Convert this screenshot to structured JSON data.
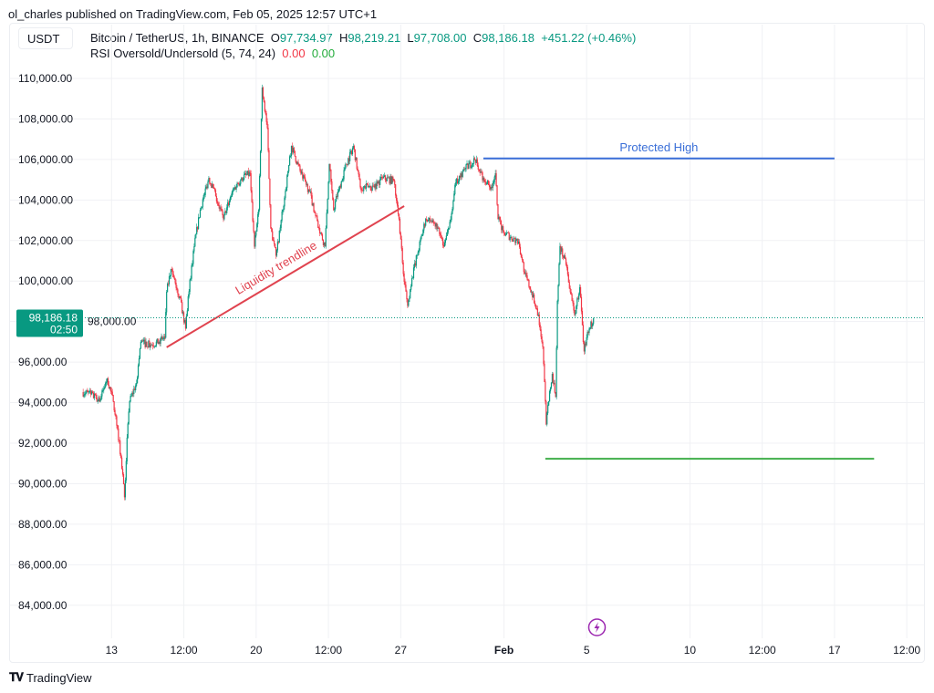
{
  "header": {
    "published": "ol_charles published on TradingView.com, Feb 05, 2025 12:57 UTC+1",
    "currency": "USDT",
    "symbol": "Bitcoin / TetherUS, 1h, BINANCE",
    "o_label": "O",
    "o": "97,734.97",
    "h_label": "H",
    "h": "98,219.21",
    "l_label": "L",
    "l": "97,708.00",
    "c_label": "C",
    "c": "98,186.18",
    "change": "+451.22 (+0.46%)",
    "indicator": "RSI Oversold/Undersold (5, 74, 24)",
    "ind_v1": "0.00",
    "ind_v2": "0.00"
  },
  "price_label": {
    "price": "98,186.18",
    "countdown": "02:50"
  },
  "footer": {
    "brand": "TradingView",
    "logo_text": "17"
  },
  "events_icon": "lightning-icon",
  "colors": {
    "up": "#089981",
    "down": "#f23645",
    "trendline": "#e0434f",
    "protected_high": "#3a6fd8",
    "low_line": "#3fae49",
    "event": "#9c27b0"
  },
  "chart_data": {
    "type": "candlestick",
    "interval": "1h",
    "xlim": [
      "2025-01-08T01:00",
      "2025-02-21T09:00"
    ],
    "ylim": [
      82370,
      112520
    ],
    "grid": true,
    "y_ticks": [
      84000,
      86000,
      88000,
      90000,
      92000,
      94000,
      96000,
      98000,
      100000,
      102000,
      104000,
      106000,
      108000,
      110000
    ],
    "y_tick_labels": [
      "84,000.00",
      "86,000.00",
      "88,000.00",
      "90,000.00",
      "92,000.00",
      "94,000.00",
      "96,000.00",
      "98,000.00",
      "100,000.00",
      "102,000.00",
      "104,000.00",
      "106,000.00",
      "108,000.00",
      "110,000.00"
    ],
    "x_ticks": [
      {
        "t": "2025-01-13T00:00",
        "label": "13"
      },
      {
        "t": "2025-01-16T12:00",
        "label": "12:00"
      },
      {
        "t": "2025-01-20T00:00",
        "label": "20"
      },
      {
        "t": "2025-01-23T12:00",
        "label": "12:00"
      },
      {
        "t": "2025-01-27T00:00",
        "label": "27"
      },
      {
        "t": "2025-02-01T00:00",
        "label": "Feb",
        "bold": true
      },
      {
        "t": "2025-02-05T00:00",
        "label": "5"
      },
      {
        "t": "2025-02-10T00:00",
        "label": "10"
      },
      {
        "t": "2025-02-13T12:00",
        "label": "12:00"
      },
      {
        "t": "2025-02-17T00:00",
        "label": "17"
      },
      {
        "t": "2025-02-20T12:00",
        "label": "12:00"
      }
    ],
    "last_price": 98186.18,
    "close_path": [
      [
        "2025-01-11T14:00",
        94520
      ],
      [
        "2025-01-12T00:00",
        94430
      ],
      [
        "2025-01-12T10:00",
        94070
      ],
      [
        "2025-01-12T19:00",
        95200
      ],
      [
        "2025-01-13T02:00",
        94070
      ],
      [
        "2025-01-13T07:00",
        92720
      ],
      [
        "2025-01-13T13:00",
        90470
      ],
      [
        "2025-01-13T15:00",
        89350
      ],
      [
        "2025-01-13T18:00",
        92270
      ],
      [
        "2025-01-13T21:00",
        94070
      ],
      [
        "2025-01-14T05:00",
        94970
      ],
      [
        "2025-01-14T10:00",
        96995
      ],
      [
        "2025-01-14T21:00",
        96860
      ],
      [
        "2025-01-15T07:00",
        96995
      ],
      [
        "2025-01-15T14:00",
        97220
      ],
      [
        "2025-01-15T16:00",
        99470
      ],
      [
        "2025-01-15T21:00",
        100595
      ],
      [
        "2025-01-16T02:00",
        99920
      ],
      [
        "2025-01-16T07:00",
        99245
      ],
      [
        "2025-01-16T14:00",
        97670
      ],
      [
        "2025-01-16T17:00",
        99245
      ],
      [
        "2025-01-17T00:00",
        101720
      ],
      [
        "2025-01-17T07:00",
        103520
      ],
      [
        "2025-01-17T17:00",
        105095
      ],
      [
        "2025-01-18T01:00",
        104195
      ],
      [
        "2025-01-18T10:00",
        103070
      ],
      [
        "2025-01-18T20:00",
        104420
      ],
      [
        "2025-01-19T07:00",
        105095
      ],
      [
        "2025-01-19T17:00",
        105320
      ],
      [
        "2025-01-19T22:00",
        101720
      ],
      [
        "2025-01-20T03:00",
        103520
      ],
      [
        "2025-01-20T07:00",
        109550
      ],
      [
        "2025-01-20T13:00",
        107570
      ],
      [
        "2025-01-20T17:00",
        102620
      ],
      [
        "2025-01-20T23:00",
        101270
      ],
      [
        "2025-01-21T07:00",
        103520
      ],
      [
        "2025-01-21T17:00",
        106670
      ],
      [
        "2025-01-22T04:00",
        105320
      ],
      [
        "2025-01-22T14:00",
        104420
      ],
      [
        "2025-01-23T01:00",
        102620
      ],
      [
        "2025-01-23T08:00",
        101720
      ],
      [
        "2025-01-23T13:00",
        105770
      ],
      [
        "2025-01-23T18:00",
        103520
      ],
      [
        "2025-01-23T23:00",
        104420
      ],
      [
        "2025-01-24T09:00",
        105770
      ],
      [
        "2025-01-24T17:00",
        106670
      ],
      [
        "2025-01-25T01:00",
        104645
      ],
      [
        "2025-01-25T17:00",
        104645
      ],
      [
        "2025-01-26T03:00",
        105095
      ],
      [
        "2025-01-26T16:00",
        104960
      ],
      [
        "2025-01-26T22:00",
        103070
      ],
      [
        "2025-01-27T03:00",
        100370
      ],
      [
        "2025-01-27T08:00",
        98795
      ],
      [
        "2025-01-27T13:00",
        100145
      ],
      [
        "2025-01-27T19:00",
        101270
      ],
      [
        "2025-01-28T05:00",
        103070
      ],
      [
        "2025-01-28T17:00",
        102845
      ],
      [
        "2025-01-29T02:00",
        101720
      ],
      [
        "2025-01-29T08:00",
        102620
      ],
      [
        "2025-01-29T16:00",
        104870
      ],
      [
        "2025-01-30T03:00",
        105545
      ],
      [
        "2025-01-30T14:00",
        105995
      ],
      [
        "2025-01-31T00:00",
        105095
      ],
      [
        "2025-01-31T09:00",
        104645
      ],
      [
        "2025-01-31T14:00",
        105320
      ],
      [
        "2025-01-31T17:00",
        103070
      ],
      [
        "2025-02-01T00:00",
        102395
      ],
      [
        "2025-02-01T08:00",
        102170
      ],
      [
        "2025-02-01T17:00",
        101945
      ],
      [
        "2025-02-02T00:00",
        100370
      ],
      [
        "2025-02-02T08:00",
        99470
      ],
      [
        "2025-02-02T16:00",
        98345
      ],
      [
        "2025-02-02T21:00",
        96770
      ],
      [
        "2025-02-03T01:00",
        92945
      ],
      [
        "2025-02-03T04:00",
        94070
      ],
      [
        "2025-02-03T08:00",
        95420
      ],
      [
        "2025-02-03T12:00",
        94295
      ],
      [
        "2025-02-03T14:00",
        99020
      ],
      [
        "2025-02-03T17:00",
        101720
      ],
      [
        "2025-02-04T00:00",
        100820
      ],
      [
        "2025-02-04T05:00",
        99470
      ],
      [
        "2025-02-04T10:00",
        98345
      ],
      [
        "2025-02-04T16:00",
        99695
      ],
      [
        "2025-02-04T21:00",
        96545
      ],
      [
        "2025-02-05T00:00",
        97220
      ],
      [
        "2025-02-05T08:00",
        98186
      ]
    ],
    "annotations": [
      {
        "kind": "trendline",
        "label": "Liquidity trendline",
        "from": [
          "2025-01-15T16:00",
          96730
        ],
        "to": [
          "2025-01-27T04:00",
          103700
        ]
      },
      {
        "kind": "hline",
        "label": "Protected High",
        "from": [
          "2025-01-31T00:00",
          106050
        ],
        "to": [
          "2025-02-17T00:00",
          106050
        ]
      },
      {
        "kind": "hline",
        "label": "",
        "from": [
          "2025-02-03T00:00",
          91230
        ],
        "to": [
          "2025-02-18T22:00",
          91230
        ]
      }
    ]
  }
}
